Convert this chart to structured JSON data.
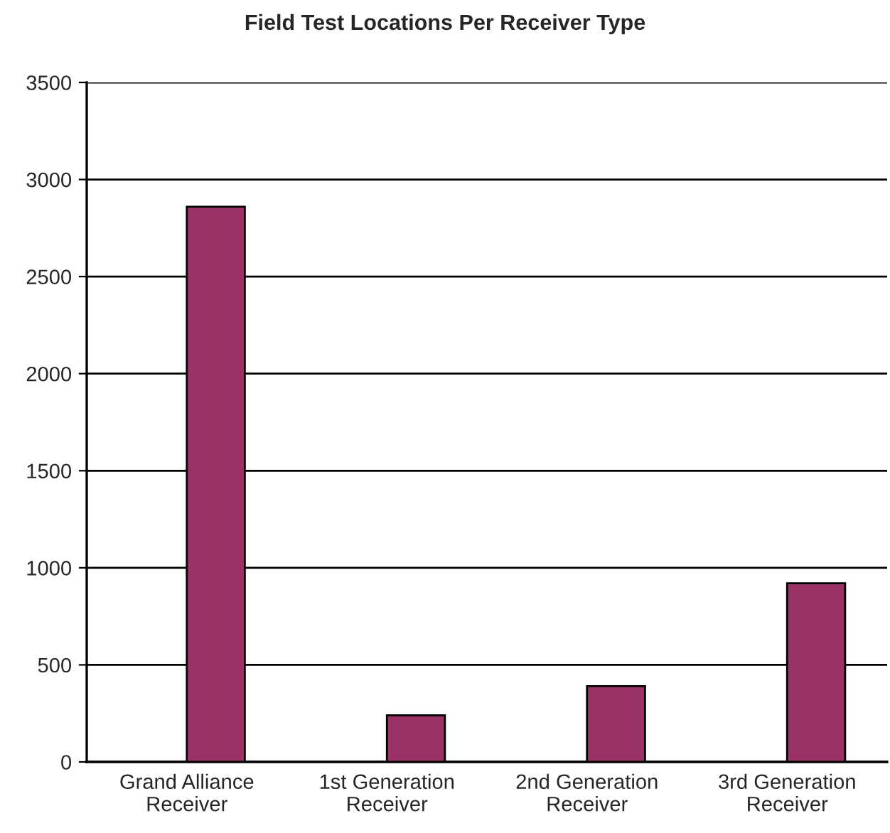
{
  "chart_data": {
    "type": "bar",
    "title": "Field Test Locations Per Receiver Type",
    "categories": [
      "Grand Alliance\nReceiver",
      "1st Generation\nReceiver",
      "2nd Generation\nReceiver",
      "3rd Generation\nReceiver"
    ],
    "values": [
      2860,
      240,
      390,
      920
    ],
    "color": "#993366",
    "ylim": [
      0,
      3500
    ],
    "yticks": [
      0,
      500,
      1000,
      1500,
      2000,
      2500,
      3000,
      3500
    ],
    "grid": "y",
    "legend": false
  }
}
